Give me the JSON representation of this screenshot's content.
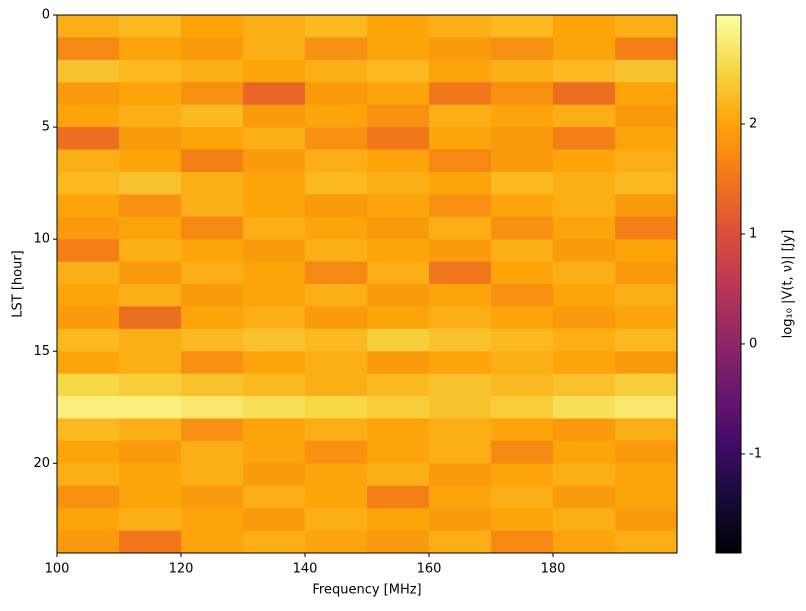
{
  "chart_data": {
    "type": "heatmap",
    "xlabel": "Frequency [MHz]",
    "ylabel": "LST [hour]",
    "colorbar_label": "log₁₀ |V(t, ν)| [Jy]",
    "colormap": "inferno",
    "x": [
      105,
      115,
      125,
      135,
      145,
      155,
      165,
      175,
      185,
      195
    ],
    "y": [
      0.5,
      1.5,
      2.5,
      3.5,
      4.5,
      5.5,
      6.5,
      7.5,
      8.5,
      9.5,
      10.5,
      11.5,
      12.5,
      13.5,
      14.5,
      15.5,
      16.5,
      17.5,
      18.5,
      19.5,
      20.5,
      21.5,
      22.5,
      23.5
    ],
    "z": [
      [
        2.1,
        2.2,
        2.0,
        2.1,
        2.2,
        2.0,
        2.1,
        2.2,
        2.0,
        2.1
      ],
      [
        1.7,
        2.0,
        1.9,
        2.1,
        1.8,
        2.0,
        1.9,
        1.8,
        2.0,
        1.6
      ],
      [
        2.3,
        2.2,
        2.1,
        2.0,
        2.1,
        2.2,
        2.0,
        2.1,
        2.2,
        2.3
      ],
      [
        1.9,
        2.0,
        1.8,
        1.3,
        1.9,
        2.0,
        1.5,
        1.8,
        1.4,
        2.0
      ],
      [
        2.0,
        2.1,
        2.2,
        1.9,
        2.0,
        1.8,
        2.1,
        2.0,
        2.1,
        1.9
      ],
      [
        1.4,
        1.9,
        2.0,
        2.1,
        1.8,
        1.5,
        2.0,
        1.9,
        1.6,
        2.0
      ],
      [
        2.1,
        2.0,
        1.6,
        1.9,
        2.1,
        2.0,
        1.7,
        1.9,
        2.0,
        2.1
      ],
      [
        2.2,
        2.3,
        2.1,
        2.0,
        2.2,
        2.1,
        2.0,
        2.2,
        2.1,
        2.2
      ],
      [
        2.0,
        1.8,
        2.1,
        2.0,
        1.9,
        2.0,
        1.8,
        2.0,
        2.1,
        1.9
      ],
      [
        1.9,
        2.0,
        1.7,
        2.1,
        2.0,
        1.9,
        2.1,
        1.8,
        2.0,
        1.6
      ],
      [
        1.6,
        2.1,
        2.0,
        1.9,
        2.1,
        2.0,
        1.9,
        2.1,
        1.9,
        2.0
      ],
      [
        2.1,
        1.9,
        2.1,
        2.0,
        1.7,
        2.1,
        1.5,
        2.0,
        2.1,
        1.9
      ],
      [
        2.0,
        2.1,
        1.9,
        2.0,
        2.1,
        1.9,
        2.0,
        1.8,
        2.0,
        2.1
      ],
      [
        1.9,
        1.4,
        2.0,
        2.1,
        1.9,
        2.0,
        2.1,
        2.0,
        1.9,
        2.0
      ],
      [
        2.2,
        2.1,
        2.2,
        2.3,
        2.2,
        2.4,
        2.3,
        2.2,
        2.1,
        2.2
      ],
      [
        2.0,
        2.1,
        1.8,
        2.0,
        2.1,
        1.9,
        2.0,
        2.1,
        2.0,
        1.9
      ],
      [
        2.5,
        2.4,
        2.3,
        2.2,
        2.1,
        2.2,
        2.3,
        2.2,
        2.3,
        2.4
      ],
      [
        2.8,
        2.8,
        2.7,
        2.6,
        2.5,
        2.4,
        2.3,
        2.4,
        2.6,
        2.7
      ],
      [
        2.2,
        2.1,
        1.8,
        2.0,
        2.1,
        2.0,
        2.1,
        2.0,
        1.9,
        2.1
      ],
      [
        2.0,
        1.9,
        2.1,
        2.0,
        1.8,
        2.0,
        2.1,
        1.7,
        2.0,
        1.9
      ],
      [
        2.1,
        2.0,
        2.1,
        1.9,
        2.0,
        2.1,
        1.9,
        2.0,
        2.1,
        2.0
      ],
      [
        1.8,
        2.0,
        1.9,
        2.1,
        2.0,
        1.6,
        2.0,
        2.1,
        1.9,
        2.0
      ],
      [
        2.0,
        2.1,
        2.0,
        1.9,
        2.1,
        2.0,
        1.9,
        2.0,
        2.1,
        1.9
      ],
      [
        1.9,
        1.5,
        2.0,
        2.1,
        2.0,
        1.9,
        2.1,
        1.7,
        2.0,
        2.1
      ]
    ],
    "xlim": [
      100,
      200
    ],
    "ylim": [
      0,
      24
    ],
    "y_inverted": true,
    "xticks": [
      100,
      120,
      140,
      160,
      180
    ],
    "yticks": [
      0,
      5,
      10,
      15,
      20
    ],
    "clim": [
      -1.9,
      2.99
    ],
    "cticks": [
      -1,
      0,
      1,
      2
    ]
  }
}
